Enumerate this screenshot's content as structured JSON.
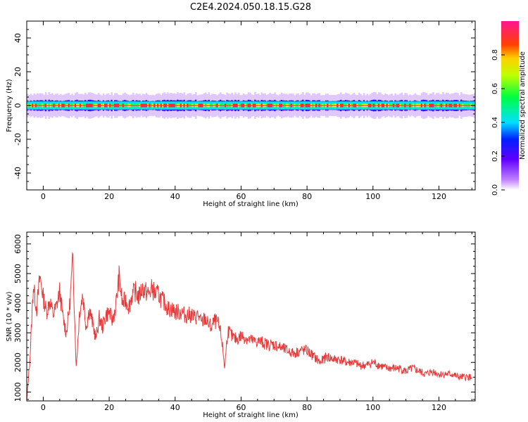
{
  "title": "C2E4.2024.050.18.15.G28",
  "chart_data": [
    {
      "type": "heatmap",
      "xlabel": "Height of straight line (km)",
      "ylabel": "Frequency (Hz)",
      "xlim": [
        -5,
        131
      ],
      "ylim": [
        -50,
        50
      ],
      "xticks": [
        0,
        20,
        40,
        60,
        80,
        100,
        120
      ],
      "yticks": [
        -40,
        -20,
        0,
        20,
        40
      ],
      "band_center_hz": 0,
      "band_halfwidth_hz": 5,
      "core_halfwidth_hz": 1,
      "colorbar": {
        "label": "Normalized spectral amplitude",
        "range": [
          0,
          1
        ],
        "ticks": [
          0.0,
          0.2,
          0.4,
          0.6,
          0.8
        ],
        "colormap": [
          "#ffffff",
          "#8000ff",
          "#0000ff",
          "#00ffff",
          "#00ff00",
          "#ffff00",
          "#ff0000",
          "#ff1493"
        ]
      },
      "grid": false
    },
    {
      "type": "line",
      "xlabel": "Height of straight line (km)",
      "ylabel": "SNR (10 * v/v)",
      "xlim": [
        -5,
        131
      ],
      "ylim": [
        700,
        6400
      ],
      "xticks": [
        0,
        20,
        40,
        60,
        80,
        100,
        120
      ],
      "yticks": [
        1000,
        2000,
        3000,
        4000,
        5000,
        6000
      ],
      "line_color": "#e83a3a",
      "x": [
        -5,
        -4,
        -3,
        -2,
        -1,
        0,
        1,
        2,
        3,
        4,
        5,
        6,
        7,
        8,
        9,
        10,
        11,
        12,
        13,
        14,
        15,
        16,
        17,
        18,
        19,
        20,
        21,
        22,
        23,
        24,
        25,
        26,
        27,
        28,
        29,
        30,
        31,
        32,
        33,
        34,
        35,
        36,
        37,
        38,
        39,
        40,
        41,
        42,
        43,
        44,
        45,
        46,
        47,
        48,
        49,
        50,
        51,
        52,
        53,
        54,
        55,
        56,
        57,
        58,
        59,
        60,
        62,
        64,
        66,
        68,
        70,
        72,
        74,
        76,
        78,
        80,
        82,
        84,
        86,
        88,
        90,
        92,
        94,
        96,
        98,
        100,
        102,
        104,
        106,
        108,
        110,
        112,
        114,
        116,
        118,
        120,
        122,
        124,
        126,
        128,
        130
      ],
      "y": [
        700,
        2200,
        4600,
        3800,
        4900,
        4200,
        3700,
        4100,
        3600,
        3900,
        4400,
        3500,
        3000,
        3900,
        5500,
        1800,
        3700,
        4300,
        3200,
        3800,
        3300,
        2800,
        3500,
        3200,
        3600,
        3700,
        3400,
        3900,
        4900,
        4000,
        4100,
        3900,
        4300,
        4400,
        4200,
        4500,
        4400,
        4300,
        4500,
        4300,
        4300,
        4100,
        4000,
        3800,
        3800,
        3700,
        3700,
        3700,
        3600,
        3600,
        3600,
        3500,
        3600,
        3300,
        3500,
        3300,
        3200,
        3400,
        3300,
        2900,
        1850,
        3100,
        2900,
        2800,
        2800,
        2900,
        2800,
        2700,
        2700,
        2600,
        2600,
        2500,
        2400,
        2300,
        2400,
        2400,
        2200,
        2000,
        2200,
        2100,
        2100,
        2000,
        2000,
        1900,
        1900,
        2000,
        1900,
        1800,
        1800,
        1800,
        1700,
        1800,
        1700,
        1600,
        1700,
        1600,
        1600,
        1600,
        1500,
        1500,
        1500
      ],
      "grid": false
    }
  ]
}
